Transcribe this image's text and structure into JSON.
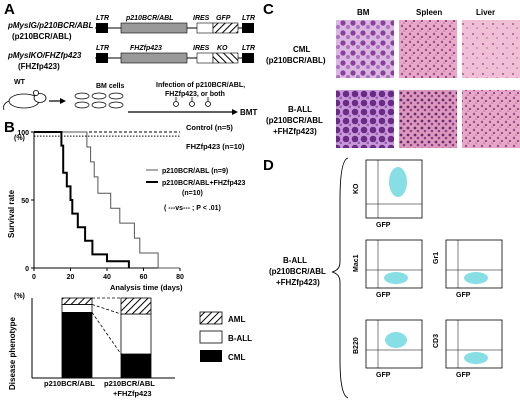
{
  "panels": {
    "A": "A",
    "B": "B",
    "C": "C",
    "D": "D"
  },
  "panelA": {
    "construct1": {
      "name": "pMysIG/p210BCR/ABL",
      "short": "(p210BCR/ABL)",
      "ltr": "LTR",
      "gene": "p210BCR/ABL",
      "ires": "IRES",
      "marker": "GFP"
    },
    "construct2": {
      "name": "pMysIKO/FHZfp423",
      "short": "(FHZfp423)",
      "ltr": "LTR",
      "gene": "FHZfp423",
      "ires": "IRES",
      "marker": "KO"
    },
    "wt": "WT",
    "bm_cells": "BM cells",
    "infection": [
      "Infection of p210BCR/ABL,",
      "FHZfp423, or both"
    ],
    "bmt": "BMT"
  },
  "panelB": {
    "ylabel": "Survival rate",
    "xlabel": "Analysis time (days)",
    "ytick": [
      "0",
      "50",
      "100"
    ],
    "xtick": [
      "0",
      "20",
      "40",
      "60",
      "80"
    ],
    "ylabel_unit": "(%)",
    "legend": {
      "control": "Control (n=5)",
      "fhz": "FHZfp423 (n=10)",
      "p210": "p210BCR/ABL (n=9)",
      "combo": "p210BCR/ABL+FHZfp423",
      "combo_n": "(n=10)",
      "pvalue": "( ---vs--- ; P < .01)"
    },
    "chart_data": [
      {
        "type": "line",
        "xlabel": "Analysis time (days)",
        "ylabel": "Survival rate",
        "xlim": [
          0,
          80
        ],
        "ylim": [
          0,
          100
        ],
        "series": [
          {
            "name": "Control (n=5)",
            "x": [
              0,
              80
            ],
            "y": [
              100,
              100
            ]
          },
          {
            "name": "FHZfp423 (n=10)",
            "x": [
              0,
              80
            ],
            "y": [
              97,
              97
            ]
          },
          {
            "name": "p210BCR/ABL (n=9)",
            "x": [
              0,
              29,
              29,
              31,
              31,
              33,
              33,
              35,
              35,
              42,
              42,
              47,
              47,
              55,
              55,
              58,
              58,
              68,
              68,
              80
            ],
            "y": [
              100,
              100,
              89,
              89,
              78,
              78,
              67,
              67,
              55,
              55,
              44,
              44,
              33,
              33,
              22,
              22,
              11,
              11,
              0,
              0
            ]
          },
          {
            "name": "p210BCR/ABL+FHZfp423",
            "x": [
              0,
              15,
              15,
              16,
              16,
              18,
              18,
              20,
              20,
              21,
              21,
              24,
              24,
              28,
              28,
              32,
              32,
              40,
              40,
              52,
              52
            ],
            "y": [
              100,
              100,
              90,
              90,
              70,
              70,
              60,
              60,
              50,
              50,
              40,
              40,
              30,
              30,
              20,
              20,
              10,
              10,
              5,
              5,
              0
            ]
          }
        ]
      },
      {
        "type": "bar",
        "categories": [
          "p210BCR/ABL",
          "p210BCR/ABL+FHZfp423"
        ],
        "ylabel": "Disease phenotype",
        "ylim": [
          0,
          100
        ],
        "series": [
          {
            "name": "CML",
            "values": [
              82,
              30
            ]
          },
          {
            "name": "B-ALL",
            "values": [
              10,
              50
            ]
          },
          {
            "name": "AML",
            "values": [
              8,
              20
            ]
          }
        ]
      }
    ],
    "bar_ylabel": "Disease phenotype",
    "bar_unit": "(%)",
    "bar_cats": [
      "p210BCR/ABL",
      "p210BCR/ABL",
      "+FHZfp423"
    ],
    "bar_legend": [
      "AML",
      "B-ALL",
      "CML"
    ]
  },
  "panelC": {
    "cols": [
      "BM",
      "Spleen",
      "Liver"
    ],
    "row1": [
      "CML",
      "(p210BCR/ABL)"
    ],
    "row2": [
      "B-ALL",
      "(p210BCR/ABL",
      "+FHZfp423)"
    ]
  },
  "panelD": {
    "group": [
      "B-ALL",
      "(p210BCR/ABL",
      "+FHZfp423)"
    ],
    "xlabel": "GFP",
    "plots": [
      "KO",
      "Mac1",
      "Gr1",
      "B220",
      "CD3"
    ]
  }
}
